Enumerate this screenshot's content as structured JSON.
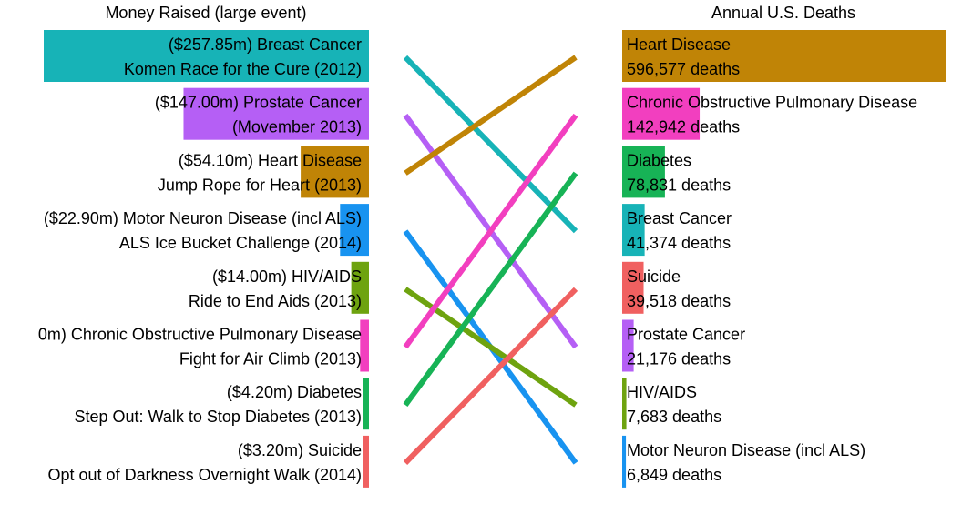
{
  "chart_data": {
    "type": "bar",
    "left_title": "Money Raised (large event)",
    "right_title": "Annual U.S. Deaths",
    "money_units": "$m",
    "left": [
      {
        "disease": "Breast Cancer",
        "event": "Komen Race for the Cure (2012)",
        "amount": 257.85,
        "amount_label": "($257.85m)",
        "color": "#17b3b7"
      },
      {
        "disease": "Prostate Cancer",
        "event": "(Movember 2013)",
        "amount": 147.0,
        "amount_label": "($147.00m)",
        "color": "#b55ff5"
      },
      {
        "disease": "Heart Disease",
        "event": "Jump Rope for Heart (2013)",
        "amount": 54.1,
        "amount_label": "($54.10m)",
        "color": "#c08406"
      },
      {
        "disease": "Motor Neuron Disease (incl ALS)",
        "event": "ALS Ice Bucket Challenge (2014)",
        "amount": 22.9,
        "amount_label": "($22.90m)",
        "color": "#1893f0"
      },
      {
        "disease": "HIV/AIDS",
        "event": "Ride to End Aids (2013)",
        "amount": 14.0,
        "amount_label": "($14.00m)",
        "color": "#6ea30f"
      },
      {
        "disease": "Chronic Obstructive Pulmonary Disease",
        "event": "Fight for Air Climb (2013)",
        "amount": 7.0,
        "amount_label": "0m)",
        "color": "#f23fbf"
      },
      {
        "disease": "Diabetes",
        "event": "Step Out: Walk to Stop Diabetes (2013)",
        "amount": 4.2,
        "amount_label": "($4.20m)",
        "color": "#17b356"
      },
      {
        "disease": "Suicide",
        "event": "Opt out of Darkness Overnight Walk (2014)",
        "amount": 3.2,
        "amount_label": "($3.20m)",
        "color": "#f06060"
      }
    ],
    "right": [
      {
        "disease": "Heart Disease",
        "deaths": 596577,
        "deaths_label": "596,577 deaths",
        "color": "#c08406"
      },
      {
        "disease": "Chronic Obstructive Pulmonary Disease",
        "deaths": 142942,
        "deaths_label": "142,942 deaths",
        "color": "#f23fbf"
      },
      {
        "disease": "Diabetes",
        "deaths": 78831,
        "deaths_label": "78,831 deaths",
        "color": "#17b356"
      },
      {
        "disease": "Breast Cancer",
        "deaths": 41374,
        "deaths_label": "41,374 deaths",
        "color": "#17b3b7"
      },
      {
        "disease": "Suicide",
        "deaths": 39518,
        "deaths_label": "39,518 deaths",
        "color": "#f06060"
      },
      {
        "disease": "Prostate Cancer",
        "deaths": 21176,
        "deaths_label": "21,176 deaths",
        "color": "#b55ff5"
      },
      {
        "disease": "HIV/AIDS",
        "deaths": 7683,
        "deaths_label": "7,683 deaths",
        "color": "#6ea30f"
      },
      {
        "disease": "Motor Neuron Disease (incl ALS)",
        "deaths": 6849,
        "deaths_label": "6,849 deaths",
        "color": "#1893f0"
      }
    ]
  }
}
